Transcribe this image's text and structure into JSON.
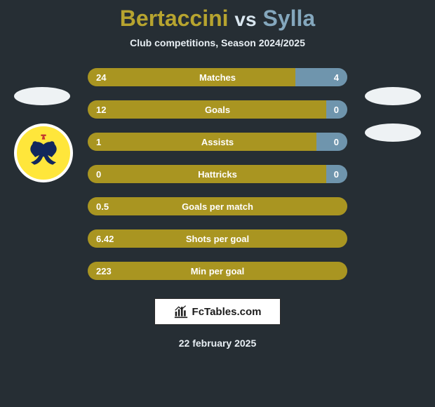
{
  "title": {
    "player1": "Bertaccini",
    "vs": "vs",
    "player2": "Sylla"
  },
  "subtitle": "Club competitions, Season 2024/2025",
  "colors": {
    "player1": "#a99521",
    "player2": "#6f95ad",
    "card_bg": "#262e34",
    "text_light": "#e8eff4"
  },
  "crest": {
    "bg": "#ffe63b",
    "ring": "#ffffff",
    "eagle": "#12275c",
    "crown": "#c63a2e"
  },
  "rows": [
    {
      "label": "Matches",
      "left": "24",
      "right": "4",
      "left_pct": 80,
      "right_pct": 20
    },
    {
      "label": "Goals",
      "left": "12",
      "right": "0",
      "left_pct": 92,
      "right_pct": 8
    },
    {
      "label": "Assists",
      "left": "1",
      "right": "0",
      "left_pct": 88,
      "right_pct": 12
    },
    {
      "label": "Hattricks",
      "left": "0",
      "right": "0",
      "left_pct": 92,
      "right_pct": 8
    },
    {
      "label": "Goals per match",
      "left": "0.5",
      "right": "",
      "left_pct": 100,
      "right_pct": 0
    },
    {
      "label": "Shots per goal",
      "left": "6.42",
      "right": "",
      "left_pct": 100,
      "right_pct": 0
    },
    {
      "label": "Min per goal",
      "left": "223",
      "right": "",
      "left_pct": 100,
      "right_pct": 0
    }
  ],
  "footer_brand": "FcTables.com",
  "date": "22 february 2025"
}
